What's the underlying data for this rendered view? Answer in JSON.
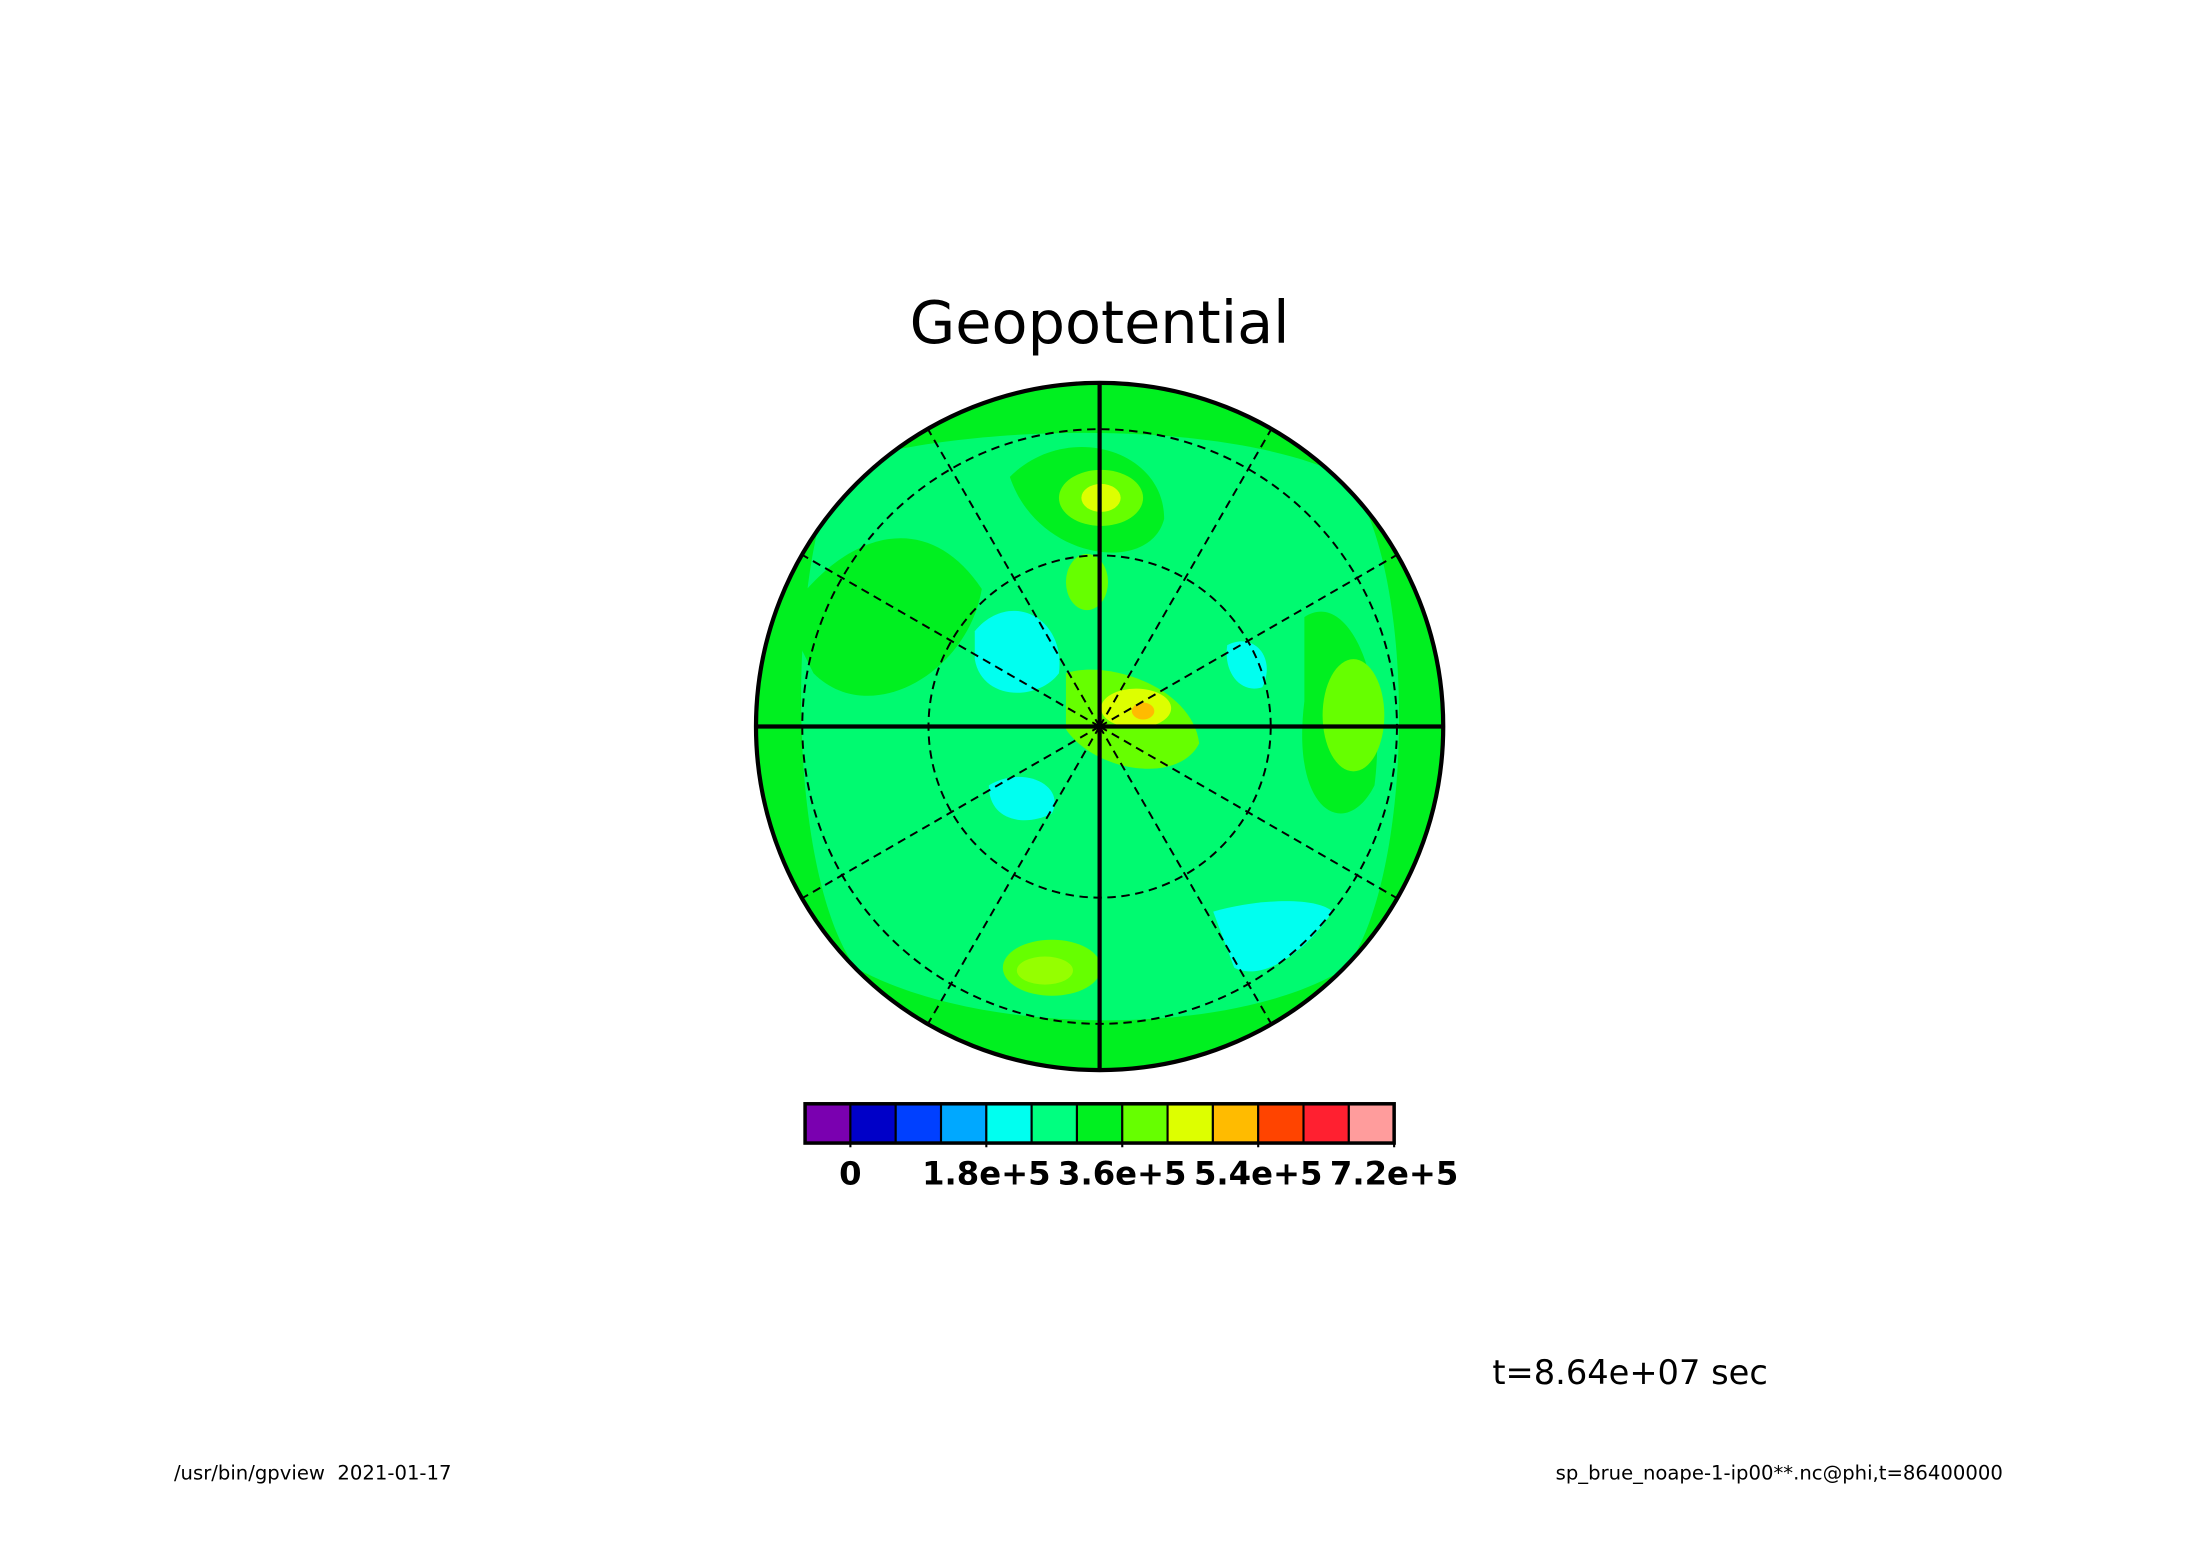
{
  "chart_data": {
    "type": "colorbar",
    "title": "Geopotential",
    "levels": [
      -60000,
      0,
      60000,
      120000,
      180000,
      240000,
      300000,
      360000,
      420000,
      480000,
      540000,
      600000,
      660000,
      720000
    ],
    "colors": [
      "#7a00b0",
      "#0000c8",
      "#0040ff",
      "#00a8ff",
      "#00fff0",
      "#00ff80",
      "#00f020",
      "#66ff00",
      "#ddff00",
      "#ffbb00",
      "#ff4400",
      "#ff2030",
      "#ff9c9c"
    ],
    "xlim": [
      -60000,
      720000
    ],
    "xticks": [
      0,
      {
        "value": 180000,
        "label": "1.8e+5"
      },
      {
        "value": 360000,
        "label": "3.6e+5"
      },
      {
        "value": 540000,
        "label": "5.4e+5"
      },
      {
        "value": 720000,
        "label": "7.2e+5"
      }
    ],
    "annotation": "t=8.64e+07 sec",
    "footer_left": "/usr/bin/gpview  2021-01-17",
    "footer_right": "sp_brue_noape-1-ip00**.nc@phi,t=86400000"
  }
}
